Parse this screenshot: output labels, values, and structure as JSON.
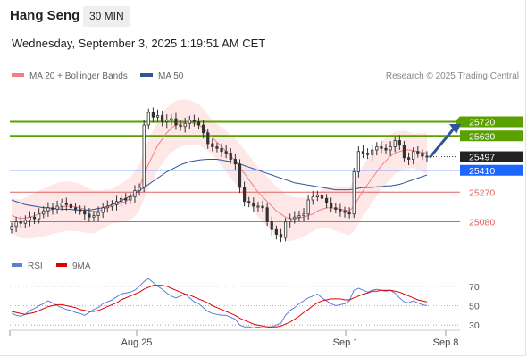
{
  "header": {
    "symbol": "Hang Seng",
    "interval": "30 MIN",
    "datetime": "Wednesday, September 3, 2025 1:19:51 AM CET"
  },
  "legend": {
    "ma20": {
      "label": "MA 20 + Bollinger Bands",
      "color": "#f08080"
    },
    "ma50": {
      "label": "MA 50",
      "color": "#2f5597"
    },
    "credit": "Research © 2025 Trading Central"
  },
  "rsi_legend": {
    "rsi": {
      "label": "RSI",
      "color": "#5b7fd6"
    },
    "ma9": {
      "label": "9MA",
      "color": "#e00000"
    }
  },
  "chart_data": [
    {
      "type": "candlestick",
      "title": "Hang Seng",
      "x_ticks": [
        "Aug 25",
        "Sep 1",
        "Sep 8"
      ],
      "ylim": [
        24900,
        25900
      ],
      "levels": [
        {
          "label": "25720",
          "value": 25720,
          "kind": "resistance",
          "color": "#5aa000"
        },
        {
          "label": "25630",
          "value": 25630,
          "kind": "resistance",
          "color": "#5aa000"
        },
        {
          "label": "25497",
          "value": 25497,
          "kind": "last price",
          "color": "#333333"
        },
        {
          "label": "25410",
          "value": 25410,
          "kind": "pivot",
          "color": "#1a66ff"
        },
        {
          "label": "25270",
          "value": 25270,
          "kind": "support",
          "color": "#e06060"
        },
        {
          "label": "25080",
          "value": 25080,
          "kind": "support",
          "color": "#e06060"
        }
      ],
      "close": [
        25050,
        25080,
        25070,
        25090,
        25110,
        25100,
        25130,
        25150,
        25170,
        25160,
        25180,
        25200,
        25190,
        25170,
        25160,
        25150,
        25130,
        25110,
        25120,
        25140,
        25170,
        25180,
        25190,
        25210,
        25230,
        25220,
        25240,
        25280,
        25300,
        25700,
        25780,
        25750,
        25760,
        25720,
        25730,
        25740,
        25700,
        25690,
        25710,
        25730,
        25720,
        25700,
        25650,
        25580,
        25560,
        25550,
        25530,
        25520,
        25480,
        25450,
        25300,
        25210,
        25200,
        25180,
        25180,
        25170,
        25080,
        25030,
        25000,
        24980,
        25080,
        25100,
        25110,
        25120,
        25130,
        25220,
        25240,
        25250,
        25230,
        25200,
        25170,
        25160,
        25150,
        25140,
        25130,
        25400,
        25530,
        25520,
        25510,
        25540,
        25560,
        25550,
        25540,
        25560,
        25600,
        25570,
        25490,
        25480,
        25530,
        25520,
        25500,
        25497
      ],
      "ma20": [
        25120,
        25110,
        25100,
        25105,
        25110,
        25120,
        25130,
        25140,
        25150,
        25160,
        25170,
        25175,
        25180,
        25180,
        25175,
        25170,
        25160,
        25150,
        25145,
        25150,
        25160,
        25170,
        25180,
        25190,
        25200,
        25210,
        25230,
        25260,
        25300,
        25380,
        25450,
        25510,
        25570,
        25610,
        25650,
        25680,
        25700,
        25710,
        25715,
        25715,
        25710,
        25700,
        25680,
        25650,
        25620,
        25590,
        25560,
        25530,
        25500,
        25470,
        25430,
        25390,
        25350,
        25310,
        25270,
        25240,
        25210,
        25180,
        25150,
        25130,
        25110,
        25100,
        25100,
        25105,
        25110,
        25120,
        25130,
        25150,
        25160,
        25170,
        25170,
        25165,
        25160,
        25155,
        25150,
        25180,
        25230,
        25280,
        25320,
        25360,
        25400,
        25440,
        25470,
        25500,
        25520,
        25530,
        25540,
        25540,
        25535,
        25530,
        25525,
        25520
      ],
      "ma50": [
        25220,
        25210,
        25200,
        25190,
        25185,
        25180,
        25175,
        25170,
        25170,
        25165,
        25165,
        25160,
        25160,
        25160,
        25155,
        25155,
        25155,
        25155,
        25160,
        25165,
        25170,
        25180,
        25190,
        25200,
        25215,
        25230,
        25245,
        25260,
        25280,
        25300,
        25320,
        25340,
        25360,
        25380,
        25400,
        25415,
        25430,
        25445,
        25455,
        25465,
        25470,
        25475,
        25478,
        25480,
        25480,
        25480,
        25475,
        25470,
        25465,
        25460,
        25450,
        25440,
        25430,
        25420,
        25410,
        25400,
        25390,
        25380,
        25370,
        25360,
        25350,
        25340,
        25330,
        25325,
        25320,
        25315,
        25310,
        25305,
        25300,
        25295,
        25290,
        25285,
        25285,
        25285,
        25285,
        25290,
        25295,
        25300,
        25300,
        25300,
        25305,
        25305,
        25310,
        25310,
        25315,
        25320,
        25330,
        25340,
        25350,
        25360,
        25370,
        25380
      ]
    },
    {
      "type": "line",
      "title": "RSI",
      "ylim": [
        20,
        80
      ],
      "y_ticks": [
        70,
        50,
        30
      ],
      "series": [
        {
          "name": "RSI",
          "values": [
            42,
            40,
            39,
            41,
            45,
            47,
            50,
            52,
            55,
            53,
            50,
            48,
            46,
            45,
            43,
            42,
            40,
            43,
            46,
            48,
            52,
            54,
            56,
            59,
            62,
            63,
            64,
            66,
            70,
            75,
            78,
            74,
            70,
            67,
            63,
            60,
            58,
            60,
            62,
            58,
            54,
            52,
            48,
            44,
            42,
            41,
            40,
            40,
            38,
            36,
            30,
            28,
            28,
            27,
            28,
            27,
            27,
            28,
            30,
            32,
            40,
            45,
            48,
            52,
            55,
            58,
            60,
            62,
            58,
            55,
            52,
            50,
            51,
            52,
            55,
            66,
            68,
            66,
            64,
            66,
            67,
            66,
            65,
            66,
            63,
            58,
            54,
            53,
            55,
            53,
            51,
            50
          ]
        },
        {
          "name": "9MA",
          "values": [
            44,
            43,
            42,
            41,
            42,
            43,
            45,
            47,
            49,
            50,
            51,
            51,
            50,
            49,
            48,
            46,
            45,
            44,
            44,
            45,
            47,
            49,
            51,
            53,
            56,
            58,
            60,
            62,
            64,
            67,
            69,
            71,
            71,
            71,
            70,
            68,
            66,
            64,
            62,
            61,
            59,
            57,
            55,
            53,
            50,
            48,
            46,
            44,
            42,
            40,
            37,
            35,
            33,
            31,
            30,
            29,
            28,
            28,
            28,
            29,
            31,
            33,
            36,
            39,
            43,
            46,
            50,
            53,
            55,
            56,
            57,
            57,
            57,
            56,
            56,
            58,
            60,
            62,
            63,
            65,
            65,
            66,
            66,
            66,
            65,
            64,
            62,
            60,
            58,
            56,
            55,
            54
          ]
        }
      ]
    }
  ]
}
